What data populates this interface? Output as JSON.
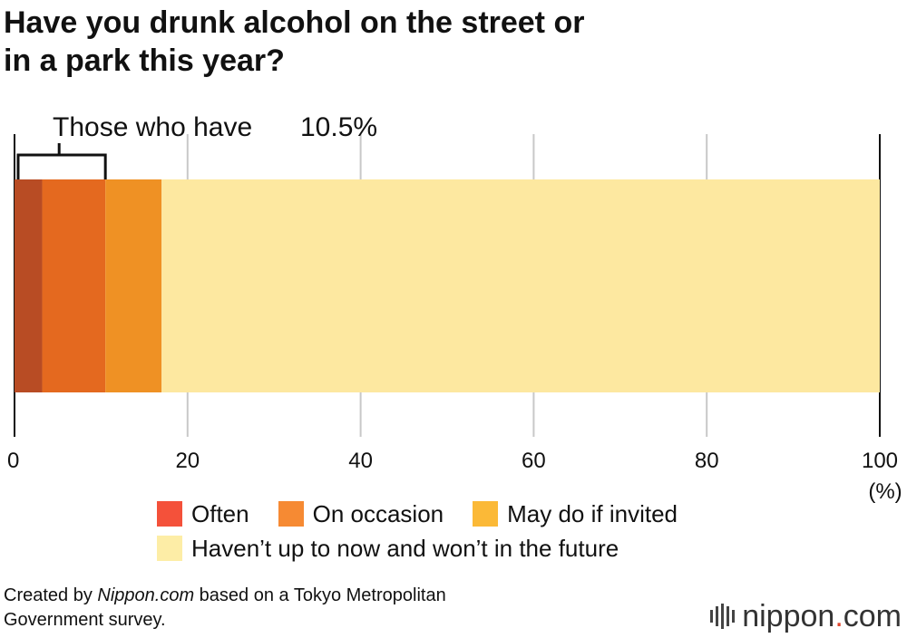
{
  "title": {
    "line1": "Have you drunk alcohol on the street or",
    "line2": "in a park this year?"
  },
  "chart_data": {
    "type": "bar",
    "orientation": "horizontal",
    "stacked": true,
    "categories": [
      ""
    ],
    "series": [
      {
        "name": "Often",
        "values": [
          3.2
        ],
        "color": "#b84c24"
      },
      {
        "name": "On occasion",
        "values": [
          7.3
        ],
        "color": "#e4691f"
      },
      {
        "name": "May do if invited",
        "values": [
          6.5
        ],
        "color": "#ef9124"
      },
      {
        "name": "Haven’t up to now and won’t in the future",
        "values": [
          83.0
        ],
        "color": "#fde8a0"
      }
    ],
    "xlim": [
      0,
      100
    ],
    "xticks": [
      "0",
      "20",
      "40",
      "60",
      "80",
      "100"
    ],
    "xunit": "(%)",
    "grid": true,
    "annotation": {
      "label": "Those who have",
      "value": "10.5%",
      "from": 0,
      "to": 10.5
    }
  },
  "legend": {
    "items": [
      {
        "label": "Often",
        "color": "#f4513a"
      },
      {
        "label": "On occasion",
        "color": "#f68a33"
      },
      {
        "label": "May do if invited",
        "color": "#fbb937"
      },
      {
        "label": "Haven’t up to now and won’t in the future",
        "color": "#fdeda6"
      }
    ]
  },
  "footer": {
    "prefix": "Created by ",
    "site": "Nippon.com",
    "suffix": " based on a Tokyo Metropolitan",
    "line2": "Government survey."
  },
  "brand": {
    "name": "nippon",
    "dot": ".",
    "tld": "com"
  }
}
